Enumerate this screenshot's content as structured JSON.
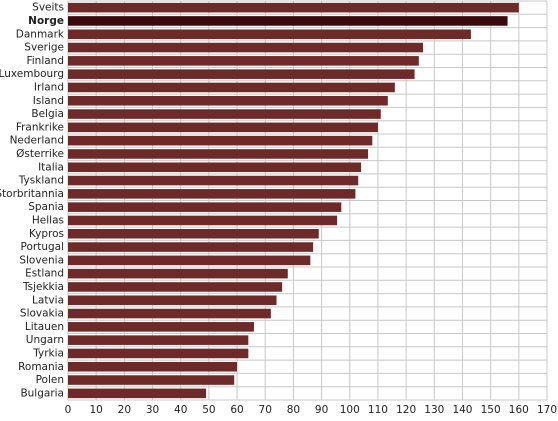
{
  "chart_data": {
    "type": "barh",
    "categories": [
      "Sveits",
      "Norge",
      "Danmark",
      "Sverige",
      "Finland",
      "Luxembourg",
      "Irland",
      "Island",
      "Belgia",
      "Frankrike",
      "Nederland",
      "Østerrike",
      "Italia",
      "Tyskland",
      "Storbritannia",
      "Spania",
      "Hellas",
      "Kypros",
      "Portugal",
      "Slovenia",
      "Estland",
      "Tsjekkia",
      "Latvia",
      "Slovakia",
      "Litauen",
      "Ungarn",
      "Tyrkia",
      "Romania",
      "Polen",
      "Bulgaria"
    ],
    "values": [
      160,
      156,
      143,
      126,
      124.5,
      123,
      116,
      113.5,
      111,
      110,
      108,
      106.5,
      104,
      103,
      102,
      97,
      95.5,
      89,
      87,
      86,
      78,
      76,
      74,
      72,
      66,
      64,
      64,
      60,
      59,
      49
    ],
    "color": "#6e2a28",
    "colors": [
      "#6e2a28",
      "#3a0a0c",
      "#6e2a28",
      "#6e2a28",
      "#6e2a28",
      "#6e2a28",
      "#6e2a28",
      "#6e2a28",
      "#6e2a28",
      "#6e2a28",
      "#6e2a28",
      "#6e2a28",
      "#6e2a28",
      "#6e2a28",
      "#6e2a28",
      "#6e2a28",
      "#6e2a28",
      "#6e2a28",
      "#6e2a28",
      "#6e2a28",
      "#6e2a28",
      "#6e2a28",
      "#6e2a28",
      "#6e2a28",
      "#6e2a28",
      "#6e2a28",
      "#6e2a28",
      "#6e2a28",
      "#6e2a28",
      "#6e2a28"
    ],
    "xlim": [
      0,
      170
    ],
    "xticks": [
      0,
      10,
      20,
      30,
      40,
      50,
      60,
      70,
      80,
      90,
      100,
      110,
      120,
      130,
      140,
      150,
      160,
      170
    ],
    "grid": true
  }
}
